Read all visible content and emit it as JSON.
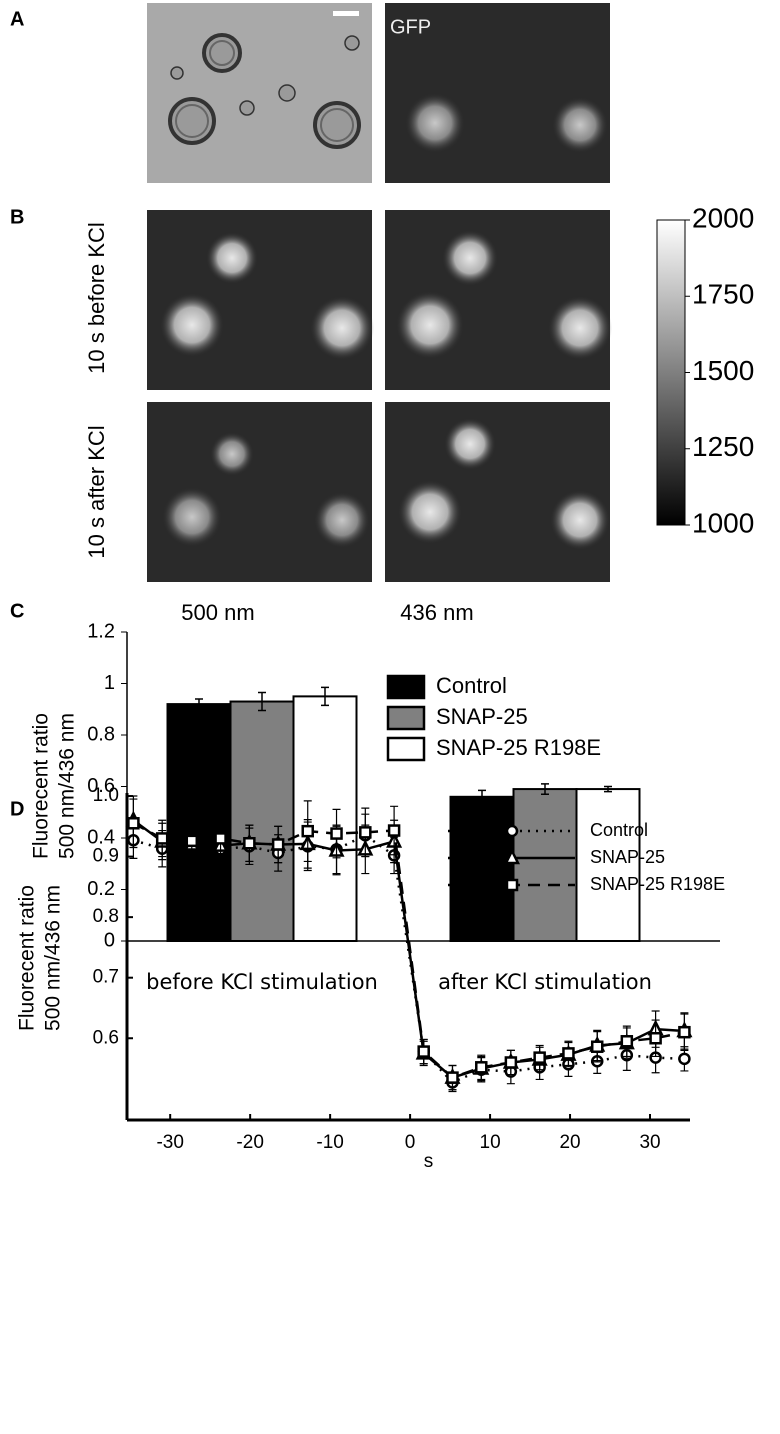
{
  "panel_labels": [
    "A",
    "B",
    "C",
    "D"
  ],
  "images": {
    "gfp_label": "GFP",
    "row_labels": [
      "10 s before KCl",
      "10 s after KCl"
    ],
    "column_labels": [
      "500 nm",
      "436 nm"
    ],
    "colorbar": {
      "lim": [
        1000,
        2000
      ],
      "ticks": [
        1000,
        1250,
        1500,
        1750,
        2000
      ]
    }
  },
  "chart_data": [
    {
      "type": "bar",
      "ylabel": [
        "Fluorecent ratio",
        "500 nm/436 nm"
      ],
      "categories": [
        "before KCl stimulation",
        "after KCl stimulation"
      ],
      "series": [
        {
          "name": "Control",
          "color": "#000000",
          "values": [
            0.92,
            0.56
          ],
          "errors": [
            0.02,
            0.025
          ]
        },
        {
          "name": "SNAP-25",
          "color": "#808080",
          "values": [
            0.93,
            0.59
          ],
          "errors": [
            0.035,
            0.02
          ]
        },
        {
          "name": "SNAP-25 R198E",
          "color": "#ffffff",
          "values": [
            0.95,
            0.59
          ],
          "errors": [
            0.035,
            0.01
          ]
        }
      ],
      "ylim": [
        0,
        1.2
      ],
      "yticks": [
        0,
        0.2,
        0.4,
        0.6,
        0.8,
        1,
        1.2
      ]
    },
    {
      "type": "line",
      "ylabel": [
        "Fluorecent ratio",
        "500 nm/436 nm"
      ],
      "xlabel": "s",
      "x": [
        -34.6,
        -31,
        -27.3,
        -23.7,
        -20.1,
        -16.5,
        -12.8,
        -9.2,
        -5.6,
        -2,
        1.7,
        5.3,
        8.9,
        12.6,
        16.2,
        19.8,
        23.4,
        27.1,
        30.7,
        34.3
      ],
      "series": [
        {
          "name": "Control",
          "color": "#000000",
          "line_style": "dotted",
          "marker": "circle",
          "values": [
            0.927,
            0.913,
            0.917,
            0.912,
            0.917,
            0.906,
            0.917,
            0.912,
            0.935,
            0.902,
            0.578,
            0.527,
            0.548,
            0.545,
            0.552,
            0.557,
            0.562,
            0.572,
            0.568,
            0.566
          ],
          "errors": [
            0.03,
            0.03,
            0.03,
            0.03,
            0.03,
            0.03,
            0.04,
            0.04,
            0.035,
            0.03,
            0.02,
            0.015,
            0.02,
            0.02,
            0.02,
            0.02,
            0.02,
            0.025,
            0.025,
            0.02
          ]
        },
        {
          "name": "SNAP-25",
          "color": "#000000",
          "line_style": "solid",
          "marker": "triangle",
          "values": [
            0.96,
            0.925,
            0.92,
            0.918,
            0.922,
            0.92,
            0.921,
            0.91,
            0.912,
            0.925,
            0.575,
            0.535,
            0.55,
            0.56,
            0.565,
            0.573,
            0.588,
            0.592,
            0.615,
            0.612
          ],
          "errors": [
            0.04,
            0.03,
            0.03,
            0.03,
            0.03,
            0.03,
            0.04,
            0.04,
            0.04,
            0.035,
            0.02,
            0.02,
            0.02,
            0.02,
            0.02,
            0.02,
            0.025,
            0.025,
            0.03,
            0.03
          ]
        },
        {
          "name": "SNAP-25 R198E",
          "color": "#000000",
          "line_style": "dashed",
          "marker": "square",
          "values": [
            0.955,
            0.93,
            0.926,
            0.93,
            0.922,
            0.92,
            0.942,
            0.938,
            0.94,
            0.943,
            0.578,
            0.535,
            0.552,
            0.56,
            0.568,
            0.575,
            0.586,
            0.595,
            0.6,
            0.61
          ],
          "errors": [
            0.04,
            0.03,
            0.03,
            0.03,
            0.03,
            0.03,
            0.05,
            0.04,
            0.04,
            0.04,
            0.02,
            0.02,
            0.02,
            0.02,
            0.02,
            0.02,
            0.025,
            0.025,
            0.03,
            0.03
          ]
        }
      ],
      "xlim": [
        -35.4,
        35
      ],
      "xticks": [
        -30,
        -20,
        -10,
        0,
        10,
        20,
        30
      ],
      "ylim": [
        0.465,
        1.005
      ],
      "yticks": [
        0.6,
        0.7,
        0.8,
        0.9,
        {
          "value": 1,
          "label": "1.0"
        }
      ]
    }
  ]
}
